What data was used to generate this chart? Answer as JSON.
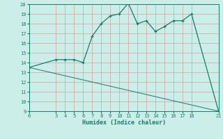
{
  "xlabel": "Humidex (Indice chaleur)",
  "line1_x": [
    0,
    3,
    4,
    5,
    6,
    7,
    8,
    9,
    10,
    11,
    12,
    13,
    14,
    15,
    16,
    17,
    18,
    21
  ],
  "line1_y": [
    13.5,
    14.3,
    14.3,
    14.3,
    14.0,
    16.7,
    18.0,
    18.8,
    19.0,
    20.1,
    18.0,
    18.3,
    17.2,
    17.7,
    18.3,
    18.3,
    19.0,
    9.0
  ],
  "line2_x": [
    0,
    21
  ],
  "line2_y": [
    13.5,
    9.0
  ],
  "color": "#1a7a6a",
  "bg_color": "#cceee8",
  "grid_color": "#d0e8e4",
  "ylim": [
    9,
    20
  ],
  "xlim": [
    0,
    21
  ],
  "yticks": [
    9,
    10,
    11,
    12,
    13,
    14,
    15,
    16,
    17,
    18,
    19,
    20
  ],
  "xticks": [
    0,
    3,
    4,
    5,
    6,
    7,
    8,
    9,
    10,
    11,
    12,
    13,
    14,
    15,
    16,
    17,
    18,
    21
  ]
}
